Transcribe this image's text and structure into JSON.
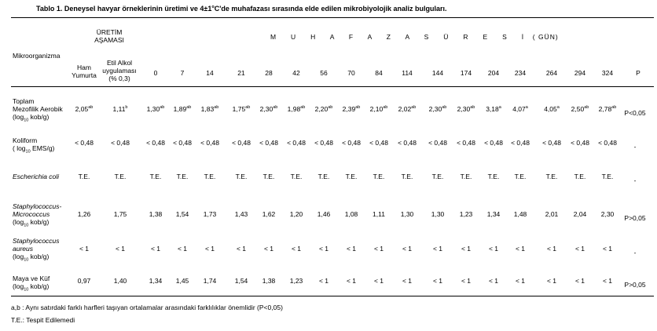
{
  "caption": {
    "label": "Tablo 1.",
    "prefix": " Deneysel havyar örneklerinin üretimi ve 4±1",
    "deg": "o",
    "suffix": "C'de muhafazası sırasında elde edilen mikrobiyolojik analiz bulguları."
  },
  "header": {
    "stage_line1": "ÜRETİM",
    "stage_line2": "AŞAMASI",
    "storage_letters": "M U H A F A Z A   S Ü R E S İ",
    "storage_unit": " ( GÜN)",
    "microorganism": "Mikroorganizma",
    "ham": [
      "Ham",
      "Yumurta"
    ],
    "etil": [
      "Etil Alkol",
      "uygulaması",
      "(% 0,3)"
    ],
    "days": [
      "0",
      "7",
      "14",
      "21",
      "28",
      "42",
      "56",
      "70",
      "84",
      "114",
      "144",
      "174",
      "204",
      "234",
      "264",
      "294",
      "324"
    ],
    "p": "P"
  },
  "rows": [
    {
      "label_lines": [
        [
          "Toplam",
          ""
        ],
        [
          "Mezofilik Aerobik",
          ""
        ],
        [
          "(log",
          "10",
          " kob/g)"
        ]
      ],
      "label_style": "normal",
      "values": [
        [
          "2,05",
          "ab"
        ],
        [
          "1,11",
          "b"
        ],
        [
          "1,30",
          "ab"
        ],
        [
          "1,89",
          "ab"
        ],
        [
          "1,83",
          "ab"
        ],
        [
          "1,75",
          "ab"
        ],
        [
          "2,30",
          "ab"
        ],
        [
          "1,98",
          "ab"
        ],
        [
          "2,20",
          "ab"
        ],
        [
          "2,39",
          "ab"
        ],
        [
          "2,10",
          "ab"
        ],
        [
          "2,02",
          "ab"
        ],
        [
          "2,30",
          "ab"
        ],
        [
          "2,30",
          "ab"
        ],
        [
          "3,18",
          "a"
        ],
        [
          "4,07",
          "a"
        ],
        [
          "4,05",
          "a"
        ],
        [
          "2,50",
          "ab"
        ],
        [
          "2,78",
          "ab"
        ]
      ],
      "p": "P<0,05"
    },
    {
      "label_lines": [
        [
          "Koliform",
          ""
        ],
        [
          "( log",
          "10",
          " EMS/g)"
        ]
      ],
      "label_style": "normal",
      "values": [
        [
          "< 0,48",
          ""
        ],
        [
          "< 0,48",
          ""
        ],
        [
          "< 0,48",
          ""
        ],
        [
          "< 0,48",
          ""
        ],
        [
          "< 0,48",
          ""
        ],
        [
          "< 0,48",
          ""
        ],
        [
          "< 0,48",
          ""
        ],
        [
          "< 0,48",
          ""
        ],
        [
          "< 0,48",
          ""
        ],
        [
          "< 0,48",
          ""
        ],
        [
          "< 0,48",
          ""
        ],
        [
          "< 0,48",
          ""
        ],
        [
          "< 0,48",
          ""
        ],
        [
          "< 0,48",
          ""
        ],
        [
          "< 0,48",
          ""
        ],
        [
          "< 0,48",
          ""
        ],
        [
          "< 0,48",
          ""
        ],
        [
          "< 0,48",
          ""
        ],
        [
          "< 0,48",
          ""
        ]
      ],
      "p": "-"
    },
    {
      "label_lines": [
        [
          "Escherichia coli",
          ""
        ]
      ],
      "label_style": "italic",
      "values": [
        [
          "T.E.",
          ""
        ],
        [
          "T.E.",
          ""
        ],
        [
          "T.E.",
          ""
        ],
        [
          "T.E.",
          ""
        ],
        [
          "T.E.",
          ""
        ],
        [
          "T.E.",
          ""
        ],
        [
          "T.E.",
          ""
        ],
        [
          "T.E.",
          ""
        ],
        [
          "T.E.",
          ""
        ],
        [
          "T.E.",
          ""
        ],
        [
          "T.E.",
          ""
        ],
        [
          "T.E.",
          ""
        ],
        [
          "T.E.",
          ""
        ],
        [
          "T.E.",
          ""
        ],
        [
          "T.E.",
          ""
        ],
        [
          "T.E.",
          ""
        ],
        [
          "T.E.",
          ""
        ],
        [
          "T.E.",
          ""
        ],
        [
          "T.E.",
          ""
        ]
      ],
      "p": "-"
    },
    {
      "label_lines": [
        [
          "Staphylococcus-",
          ""
        ],
        [
          "Micrococcus",
          ""
        ],
        [
          "(log",
          "10",
          " kob/g)"
        ]
      ],
      "label_style": "italic2",
      "values": [
        [
          "1,26",
          ""
        ],
        [
          "1,75",
          ""
        ],
        [
          "1,38",
          ""
        ],
        [
          "1,54",
          ""
        ],
        [
          "1,73",
          ""
        ],
        [
          "1,43",
          ""
        ],
        [
          "1,62",
          ""
        ],
        [
          "1,20",
          ""
        ],
        [
          "1,46",
          ""
        ],
        [
          "1,08",
          ""
        ],
        [
          "1,11",
          ""
        ],
        [
          "1,30",
          ""
        ],
        [
          "1,30",
          ""
        ],
        [
          "1,23",
          ""
        ],
        [
          "1,34",
          ""
        ],
        [
          "1,48",
          ""
        ],
        [
          "2,01",
          ""
        ],
        [
          "2,04",
          ""
        ],
        [
          "2,30",
          ""
        ]
      ],
      "p": "P>0,05"
    },
    {
      "label_lines": [
        [
          "Staphylococcus",
          ""
        ],
        [
          "aureus",
          ""
        ],
        [
          "(log",
          "10",
          " kob/g)"
        ]
      ],
      "label_style": "italic2",
      "values": [
        [
          "< 1",
          ""
        ],
        [
          "< 1",
          ""
        ],
        [
          "< 1",
          ""
        ],
        [
          "< 1",
          ""
        ],
        [
          "< 1",
          ""
        ],
        [
          "< 1",
          ""
        ],
        [
          "< 1",
          ""
        ],
        [
          "< 1",
          ""
        ],
        [
          "< 1",
          ""
        ],
        [
          "< 1",
          ""
        ],
        [
          "< 1",
          ""
        ],
        [
          "< 1",
          ""
        ],
        [
          "< 1",
          ""
        ],
        [
          "< 1",
          ""
        ],
        [
          "< 1",
          ""
        ],
        [
          "< 1",
          ""
        ],
        [
          "< 1",
          ""
        ],
        [
          "< 1",
          ""
        ],
        [
          "< 1",
          ""
        ]
      ],
      "p": "-"
    },
    {
      "label_lines": [
        [
          "Maya ve Küf",
          ""
        ],
        [
          "(log",
          "10",
          " kob/g)"
        ]
      ],
      "label_style": "normal",
      "values": [
        [
          "0,97",
          ""
        ],
        [
          "1,40",
          ""
        ],
        [
          "1,34",
          ""
        ],
        [
          "1,45",
          ""
        ],
        [
          "1,74",
          ""
        ],
        [
          "1,54",
          ""
        ],
        [
          "1,38",
          ""
        ],
        [
          "1,23",
          ""
        ],
        [
          "< 1",
          ""
        ],
        [
          "< 1",
          ""
        ],
        [
          "< 1",
          ""
        ],
        [
          "< 1",
          ""
        ],
        [
          "< 1",
          ""
        ],
        [
          "< 1",
          ""
        ],
        [
          "< 1",
          ""
        ],
        [
          "< 1",
          ""
        ],
        [
          "< 1",
          ""
        ],
        [
          "< 1",
          ""
        ],
        [
          "< 1",
          ""
        ]
      ],
      "p": "P>0,05"
    }
  ],
  "footnotes": {
    "ab": "a,b :  Aynı satırdaki farklı harfleri taşıyan ortalamalar arasındaki farklılıklar önemlidir (P<0,05)",
    "te": "T.E.: Tespit Edilemedi"
  }
}
